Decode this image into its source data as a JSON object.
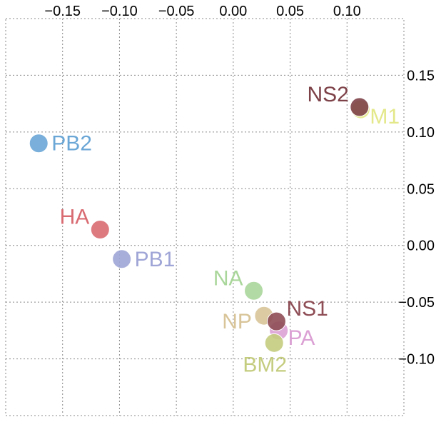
{
  "chart_data": {
    "type": "scatter",
    "title": "",
    "xlabel": "",
    "ylabel": "",
    "xlim": [
      -0.2,
      0.15
    ],
    "ylim": [
      -0.15,
      0.2
    ],
    "grid": true,
    "x_axis_position": "top",
    "y_axis_position": "right",
    "x_ticks": [
      -0.15,
      -0.1,
      -0.05,
      0.0,
      0.05,
      0.1
    ],
    "x_tick_labels": [
      "−0.15",
      "−0.10",
      "−0.05",
      "0.00",
      "0.05",
      "0.10"
    ],
    "y_ticks": [
      0.15,
      0.1,
      0.05,
      0.0,
      -0.05,
      -0.1
    ],
    "y_tick_labels": [
      "0.15",
      "0.10",
      "0.05",
      "0.00",
      "−0.05",
      "−0.10"
    ],
    "points": [
      {
        "label": "PB2",
        "x": -0.171,
        "y": 0.09,
        "color": "#6aa6d6",
        "label_pos": "right"
      },
      {
        "label": "HA",
        "x": -0.117,
        "y": 0.014,
        "color": "#d96b72",
        "label_pos": "upper-left"
      },
      {
        "label": "PB1",
        "x": -0.098,
        "y": -0.012,
        "color": "#9fa5d6",
        "label_pos": "right"
      },
      {
        "label": "NA",
        "x": 0.018,
        "y": -0.04,
        "color": "#a9d69a",
        "label_pos": "upper-left"
      },
      {
        "label": "NP",
        "x": 0.027,
        "y": -0.062,
        "color": "#d8c498",
        "label_pos": "lower-left"
      },
      {
        "label": "PA",
        "x": 0.04,
        "y": -0.075,
        "color": "#dba0d4",
        "label_pos": "lower-right"
      },
      {
        "label": "NS1",
        "x": 0.038,
        "y": -0.067,
        "color": "#8e4d55",
        "label_pos": "upper-right"
      },
      {
        "label": "BM2",
        "x": 0.036,
        "y": -0.086,
        "color": "#c4cc7e",
        "label_pos": "below"
      },
      {
        "label": "M1",
        "x": 0.112,
        "y": 0.12,
        "color": "#e3e88a",
        "label_pos": "lower-right"
      },
      {
        "label": "NS2",
        "x": 0.111,
        "y": 0.122,
        "color": "#7d4148",
        "label_pos": "upper-left"
      }
    ]
  }
}
